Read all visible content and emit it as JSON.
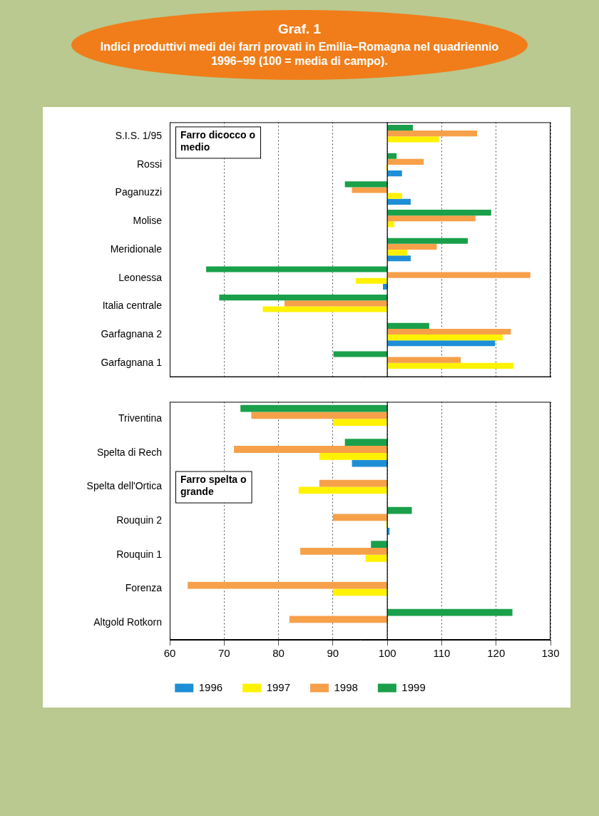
{
  "header": {
    "title": "Graf. 1",
    "subtitle": "Indici produttivi medi dei farri provati in Emilia–Romagna nel quadriennio 1996–99 (100 = media di campo)."
  },
  "chart_data": [
    {
      "type": "bar",
      "orientation": "horizontal",
      "title": "Farro dicocco o medio",
      "categories": [
        "S.I.S. 1/95",
        "Rossi",
        "Paganuzzi",
        "Molise",
        "Meridionale",
        "Leonessa",
        "Italia centrale",
        "Garfagnana 2",
        "Garfagnana 1"
      ],
      "baseline": 100,
      "series": [
        {
          "name": "1996",
          "color": "#1e8fd6",
          "values": [
            null,
            102.7,
            104.3,
            null,
            104.3,
            99.2,
            null,
            119.8,
            null
          ]
        },
        {
          "name": "1997",
          "color": "#fff200",
          "values": [
            109.5,
            99.8,
            102.7,
            101.3,
            103.7,
            94.2,
            77.1,
            121.2,
            123.2
          ]
        },
        {
          "name": "1998",
          "color": "#f7a04a",
          "values": [
            116.5,
            106.7,
            93.5,
            116.2,
            109.1,
            126.3,
            81.1,
            122.7,
            113.5
          ]
        },
        {
          "name": "1999",
          "color": "#1aa04a",
          "values": [
            104.7,
            101.7,
            92.2,
            119.1,
            114.8,
            66.7,
            69.1,
            107.7,
            90.1
          ]
        }
      ],
      "xlim": [
        60,
        130
      ],
      "xticks": [
        60,
        70,
        80,
        90,
        100,
        110,
        120,
        130
      ],
      "grid": true,
      "tick_labels": "y"
    },
    {
      "type": "bar",
      "orientation": "horizontal",
      "title": "Farro spelta o grande",
      "categories": [
        "Triventina",
        "Spelta di Rech",
        "Spelta dell'Ortica",
        "Rouquin 2",
        "Rouquin 1",
        "Forenza",
        "Altgold Rotkorn"
      ],
      "baseline": 100,
      "series": [
        {
          "name": "1996",
          "color": "#1e8fd6",
          "values": [
            null,
            93.5,
            null,
            100.4,
            null,
            null,
            null
          ]
        },
        {
          "name": "1997",
          "color": "#fff200",
          "values": [
            90.0,
            87.5,
            83.7,
            99.8,
            96.0,
            90.0,
            null
          ]
        },
        {
          "name": "1998",
          "color": "#f7a04a",
          "values": [
            75.0,
            71.8,
            87.5,
            90.0,
            84.0,
            63.3,
            82.0
          ]
        },
        {
          "name": "1999",
          "color": "#1aa04a",
          "values": [
            73.0,
            92.2,
            null,
            104.5,
            97.0,
            null,
            123.0
          ]
        }
      ],
      "xlim": [
        60,
        130
      ],
      "xticks": [
        60,
        70,
        80,
        90,
        100,
        110,
        120,
        130
      ],
      "grid": true,
      "legend": "bottom"
    }
  ]
}
